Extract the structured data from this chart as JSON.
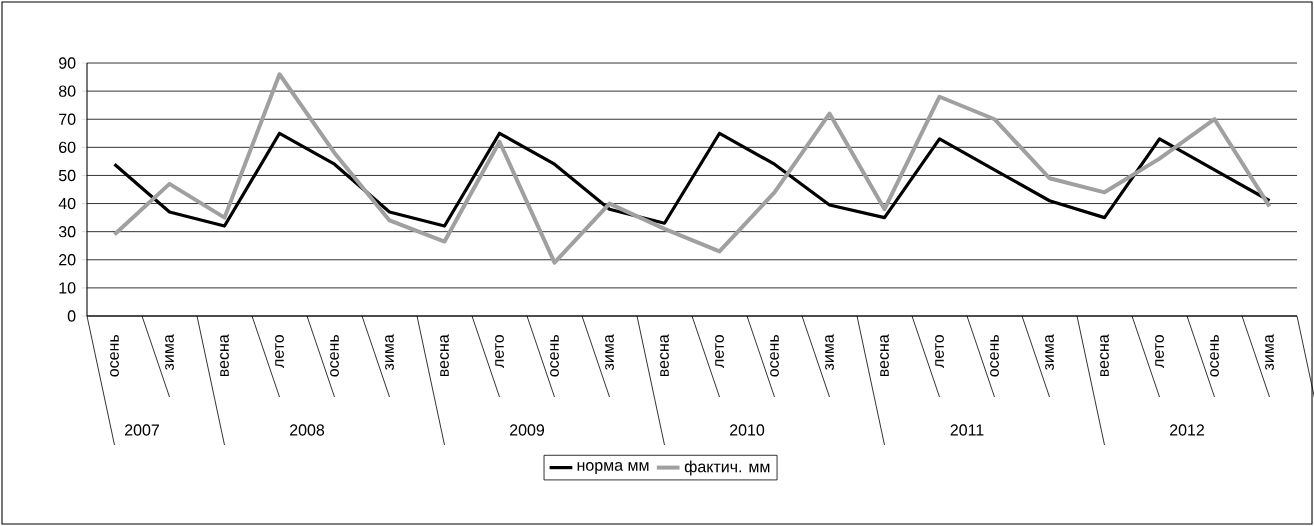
{
  "chart_data": {
    "type": "line",
    "categories": [
      "осень",
      "зима",
      "весна",
      "лето",
      "осень",
      "зима",
      "весна",
      "лето",
      "осень",
      "зима",
      "весна",
      "лето",
      "осень",
      "зима",
      "весна",
      "лето",
      "осень",
      "зима",
      "весна",
      "лето",
      "осень",
      "зима"
    ],
    "series": [
      {
        "name": "норма мм",
        "color": "#000000",
        "values": [
          54,
          37,
          32,
          65,
          54,
          37,
          32,
          65,
          54,
          38,
          33,
          65,
          54,
          39.5,
          35,
          63,
          52,
          41,
          35,
          63,
          52,
          41
        ]
      },
      {
        "name": "фактич. мм",
        "color": "#a0a0a0",
        "values": [
          29,
          47,
          35,
          86,
          58,
          34,
          26.5,
          62,
          19,
          40,
          31,
          23,
          44,
          72,
          38,
          78,
          70,
          49,
          44,
          56,
          70,
          39
        ]
      }
    ],
    "annotations": [
      "2007",
      "2008",
      "2009",
      "2010",
      "2011",
      "2012"
    ],
    "ylim": [
      0,
      90
    ],
    "yticks": [
      0,
      10,
      20,
      30,
      40,
      50,
      60,
      70,
      80,
      90
    ],
    "grid": "y",
    "legend": "bottom"
  }
}
